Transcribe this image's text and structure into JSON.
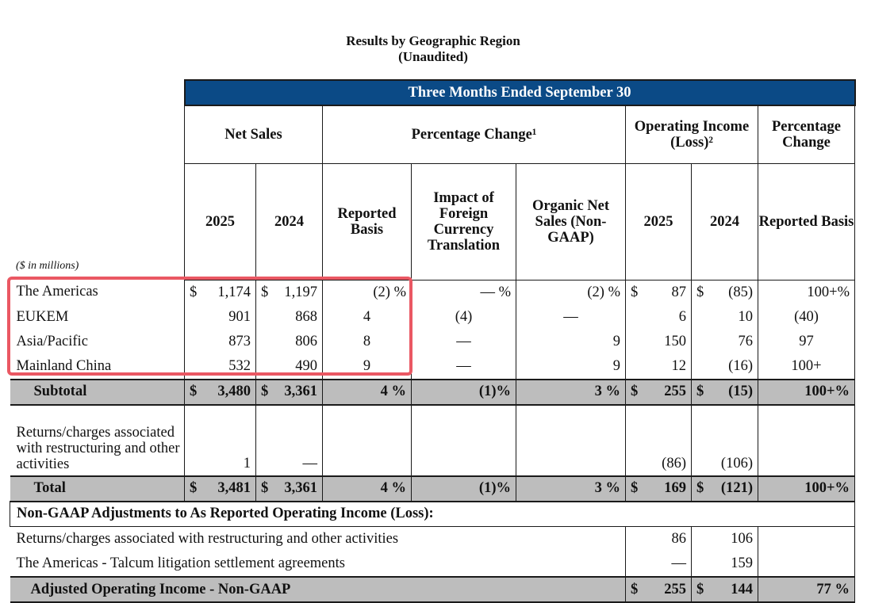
{
  "title": "Results by Geographic Region",
  "subtitle": "(Unaudited)",
  "units_note": "($ in millions)",
  "banner": "Three Months Ended September 30",
  "headers": {
    "net_sales": "Net Sales",
    "percentage_change": "Percentage Change¹",
    "operating_income": "Operating Income (Loss)²",
    "percentage_change_right": "Percentage Change",
    "y2025": "2025",
    "y2024": "2024",
    "reported_basis": "Reported Basis",
    "fx_impact": "Impact of Foreign Currency Translation",
    "organic": "Organic Net Sales (Non-GAAP)",
    "oi_2025": "2025",
    "oi_2024": "2024",
    "reported_basis_right": "Reported Basis"
  },
  "rows": [
    {
      "label": "The Americas",
      "ns25_sym": "$",
      "ns25": "1,174",
      "ns24_sym": "$",
      "ns24": "1,197",
      "rep": "(2) %",
      "fx": "— %",
      "org": "(2) %",
      "oi25_sym": "$",
      "oi25": "87",
      "oi24_sym": "$",
      "oi24": "(85)",
      "pct": "100+%"
    },
    {
      "label": "EUKEM",
      "ns25_sym": "",
      "ns25": "901",
      "ns24_sym": "",
      "ns24": "868",
      "rep": "4",
      "fx": "(4)",
      "org": "—",
      "oi25_sym": "",
      "oi25": "6",
      "oi24_sym": "",
      "oi24": "10",
      "pct": "(40)"
    },
    {
      "label": "Asia/Pacific",
      "ns25_sym": "",
      "ns25": "873",
      "ns24_sym": "",
      "ns24": "806",
      "rep": "8",
      "fx": "—",
      "org": "9",
      "oi25_sym": "",
      "oi25": "150",
      "oi24_sym": "",
      "oi24": "76",
      "pct": "97"
    },
    {
      "label": "Mainland China",
      "ns25_sym": "",
      "ns25": "532",
      "ns24_sym": "",
      "ns24": "490",
      "rep": "9",
      "fx": "—",
      "org": "9",
      "oi25_sym": "",
      "oi25": "12",
      "oi24_sym": "",
      "oi24": "(16)",
      "pct": "100+"
    }
  ],
  "subtotal": {
    "label": "Subtotal",
    "ns25_sym": "$",
    "ns25": "3,480",
    "ns24_sym": "$",
    "ns24": "3,361",
    "rep": "4 %",
    "fx": "(1)%",
    "org": "3 %",
    "oi25_sym": "$",
    "oi25": "255",
    "oi24_sym": "$",
    "oi24": "(15)",
    "pct": "100+%"
  },
  "returns": {
    "label": "Returns/charges associated with restructuring and other activities",
    "ns25": "1",
    "ns24": "—",
    "oi25": "(86)",
    "oi24": "(106)"
  },
  "total": {
    "label": "Total",
    "ns25_sym": "$",
    "ns25": "3,481",
    "ns24_sym": "$",
    "ns24": "3,361",
    "rep": "4 %",
    "fx": "(1)%",
    "org": "3 %",
    "oi25_sym": "$",
    "oi25": "169",
    "oi24_sym": "$",
    "oi24": "(121)",
    "pct": "100+%"
  },
  "non_gaap_heading": "Non-GAAP Adjustments to As Reported Operating Income (Loss):",
  "adjustments": [
    {
      "label": "Returns/charges associated with restructuring and other activities",
      "oi25": "86",
      "oi24": "106"
    },
    {
      "label": "The Americas - Talcum litigation settlement agreements",
      "oi25": "—",
      "oi24": "159"
    }
  ],
  "adjusted": {
    "label": "Adjusted Operating Income - Non-GAAP",
    "oi25_sym": "$",
    "oi25": "255",
    "oi24_sym": "$",
    "oi24": "144",
    "pct": "77 %"
  }
}
